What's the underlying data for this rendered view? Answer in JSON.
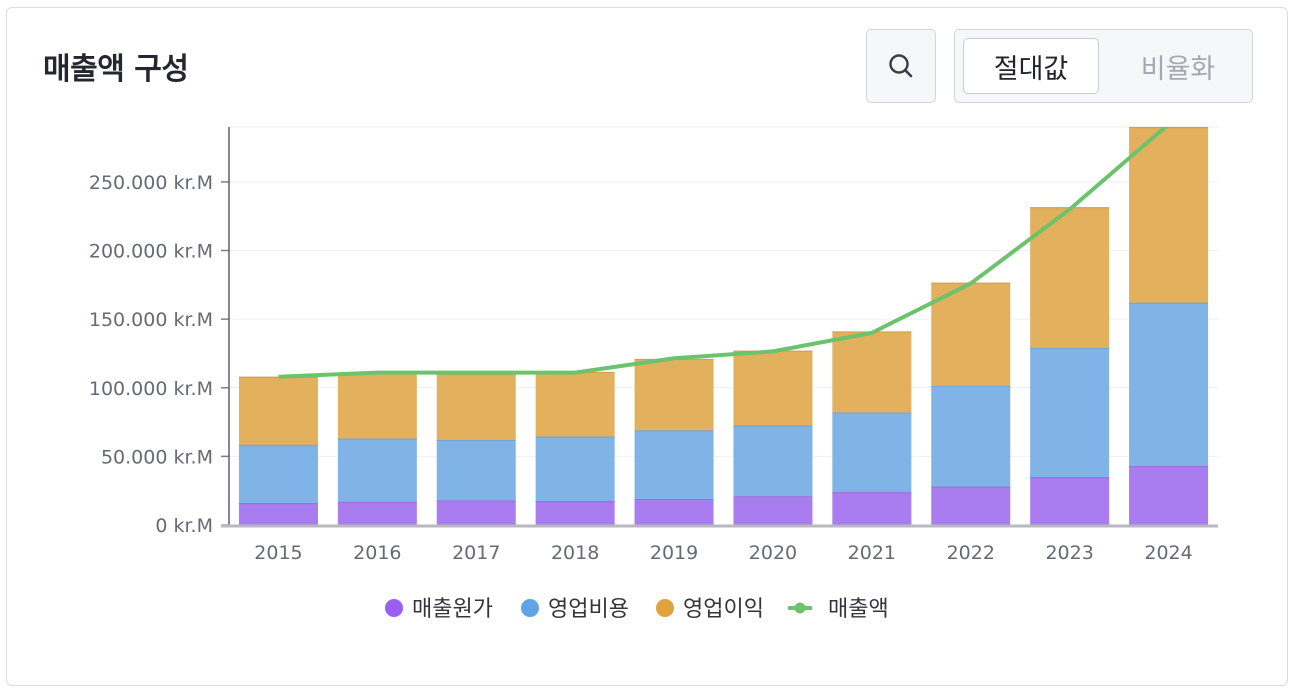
{
  "header": {
    "title": "매출액 구성",
    "search_icon": "search-icon",
    "toggle": {
      "active_label": "절대값",
      "inactive_label": "비율화"
    }
  },
  "colors": {
    "cost_of_sales": "#a97cf0",
    "operating_expenses": "#80b3e6",
    "operating_income": "#e3b05e",
    "revenue_line": "#6cc36c",
    "legend_cost": "#9a5ff0",
    "legend_opex": "#5fa4e6",
    "legend_income": "#dfa33f"
  },
  "chart_data": {
    "type": "bar",
    "stacked": true,
    "categories": [
      "2015",
      "2016",
      "2017",
      "2018",
      "2019",
      "2020",
      "2021",
      "2022",
      "2023",
      "2024"
    ],
    "series": [
      {
        "name": "매출원가",
        "kind": "bar",
        "values": [
          16000,
          17000,
          18000,
          17500,
          19000,
          21000,
          24000,
          28000,
          35000,
          43000
        ]
      },
      {
        "name": "영업비용",
        "kind": "bar",
        "values": [
          42500,
          46000,
          44000,
          47000,
          50000,
          51500,
          58000,
          73500,
          94000,
          119000
        ]
      },
      {
        "name": "영업이익",
        "kind": "bar",
        "values": [
          49500,
          48000,
          48000,
          47000,
          52000,
          54500,
          59000,
          75000,
          102500,
          130000
        ]
      },
      {
        "name": "매출액",
        "kind": "line",
        "values": [
          108000,
          111000,
          111000,
          111000,
          121500,
          126500,
          140000,
          176000,
          230000,
          292000
        ]
      }
    ],
    "y_ticks": [
      {
        "value": 0,
        "label": "0 kr.M"
      },
      {
        "value": 50000,
        "label": "50.000 kr.M"
      },
      {
        "value": 100000,
        "label": "100.000 kr.M"
      },
      {
        "value": 150000,
        "label": "150.000 kr.M"
      },
      {
        "value": 200000,
        "label": "200.000 kr.M"
      },
      {
        "value": 250000,
        "label": "250.000 kr.M"
      }
    ],
    "ylim": [
      0,
      290000
    ],
    "legend": [
      "매출원가",
      "영업비용",
      "영업이익",
      "매출액"
    ],
    "legend_position": "bottom-center",
    "grid": true
  }
}
